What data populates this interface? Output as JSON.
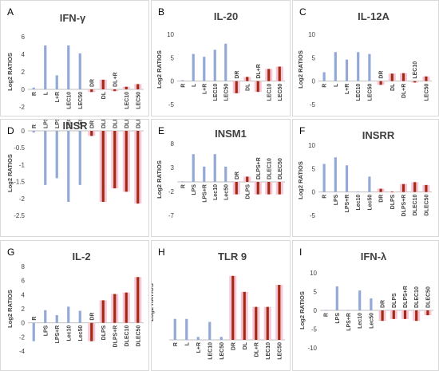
{
  "y_axis_label": "Log2 RATIOS",
  "colors": {
    "blue": "#92a9d8",
    "red": "#a52a14",
    "pink": "#f5c6d6",
    "axis": "#bfbfbf"
  },
  "chart_data": [
    {
      "type": "bar",
      "letter": "A",
      "title": "IFN-γ",
      "categories": [
        "R",
        "L",
        "L+R",
        "LEC10",
        "LEC50",
        "DR",
        "DL",
        "DL+R",
        "LEC10",
        "LEC50"
      ],
      "values": [
        0.2,
        5.0,
        1.6,
        5.0,
        4.1,
        -0.3,
        1.1,
        -0.2,
        0.3,
        0.6
      ],
      "colors": [
        "blue",
        "blue",
        "blue",
        "blue",
        "blue",
        "red",
        "red",
        "red",
        "red",
        "red"
      ],
      "yticks": [
        6,
        4,
        2,
        0,
        -2
      ],
      "ylim": [
        -2,
        6
      ]
    },
    {
      "type": "bar",
      "letter": "B",
      "title": "IL-20",
      "categories": [
        "R",
        "L",
        "L+R",
        "LEC10",
        "LEC50",
        "DR",
        "DL",
        "DL+R",
        "LEC10",
        "LEC50"
      ],
      "values": [
        0.2,
        5.8,
        5.2,
        6.7,
        8.0,
        -2.6,
        0.9,
        -2.3,
        2.6,
        3.1
      ],
      "colors": [
        "blue",
        "blue",
        "blue",
        "blue",
        "blue",
        "red",
        "red",
        "red",
        "red",
        "red"
      ],
      "yticks": [
        10,
        5,
        0,
        -5
      ],
      "ylim": [
        -5,
        10
      ]
    },
    {
      "type": "bar",
      "letter": "C",
      "title": "IL-12A",
      "categories": [
        "R",
        "L",
        "L+R",
        "LEC10",
        "LEC50",
        "DR",
        "DL",
        "DL+R",
        "LEC10",
        "LEC50"
      ],
      "values": [
        1.9,
        6.2,
        4.6,
        6.2,
        5.8,
        -0.8,
        1.6,
        1.7,
        -0.3,
        1.0
      ],
      "colors": [
        "blue",
        "blue",
        "blue",
        "blue",
        "blue",
        "red",
        "red",
        "red",
        "red",
        "red"
      ],
      "yticks": [
        10,
        5,
        0,
        -5
      ],
      "ylim": [
        -5,
        10
      ]
    },
    {
      "type": "bar",
      "letter": "D",
      "title": "INSR",
      "categories": [
        "R",
        "LPS",
        "LPS+R",
        "LEC10",
        "LEC50",
        "DR",
        "DLPS",
        "DLPS+R",
        "DLEC10",
        "DLEC50"
      ],
      "values": [
        -0.05,
        -1.6,
        -1.4,
        -2.1,
        -1.6,
        -0.15,
        -2.1,
        -1.7,
        -1.8,
        -2.15
      ],
      "colors": [
        "blue",
        "blue",
        "blue",
        "blue",
        "blue",
        "red",
        "red",
        "red",
        "red",
        "red"
      ],
      "yticks": [
        0,
        -0.5,
        -1,
        -1.5,
        -2,
        -2.5
      ],
      "ylim": [
        -2.5,
        0
      ]
    },
    {
      "type": "bar",
      "letter": "E",
      "title": "INSM1",
      "categories": [
        "R",
        "LPS",
        "LPS+R",
        "Lec10",
        "Lec50",
        "DR",
        "DLPS",
        "DLPS+R",
        "DLEC10",
        "DLEC50"
      ],
      "values": [
        0.1,
        5.8,
        3.2,
        5.8,
        3.2,
        -2.6,
        1.1,
        -2.6,
        -2.6,
        -2.6
      ],
      "colors": [
        "blue",
        "blue",
        "blue",
        "blue",
        "blue",
        "red",
        "red",
        "red",
        "red",
        "red"
      ],
      "yticks": [
        8,
        3,
        -2,
        -7
      ],
      "ylim": [
        -7,
        8
      ]
    },
    {
      "type": "bar",
      "letter": "F",
      "title": "INSRR",
      "categories": [
        "R",
        "LPS",
        "LPS+R",
        "Lec10",
        "Lec50",
        "DR",
        "DLPS",
        "DLPS+R",
        "DLEC10",
        "DLEC50"
      ],
      "values": [
        6.0,
        7.4,
        5.7,
        0.1,
        3.3,
        0.7,
        0.1,
        1.7,
        2.1,
        1.5
      ],
      "colors": [
        "blue",
        "blue",
        "blue",
        "blue",
        "blue",
        "red",
        "red",
        "red",
        "red",
        "red"
      ],
      "yticks": [
        10,
        5,
        0,
        -5
      ],
      "ylim": [
        -5,
        10
      ]
    },
    {
      "type": "bar",
      "letter": "G",
      "title": "IL-2",
      "categories": [
        "R",
        "LPS",
        "LPS+R",
        "Lec10",
        "Lec50",
        "DR",
        "DLPS",
        "DLPS+R",
        "DLEC10",
        "DLEC50"
      ],
      "values": [
        -2.6,
        1.8,
        1.1,
        2.3,
        1.7,
        -2.6,
        3.2,
        4.1,
        4.3,
        6.5
      ],
      "colors": [
        "blue",
        "blue",
        "blue",
        "blue",
        "blue",
        "red",
        "red",
        "red",
        "red",
        "red"
      ],
      "yticks": [
        8,
        6,
        4,
        2,
        0,
        -2,
        -4
      ],
      "ylim": [
        -4,
        8
      ]
    },
    {
      "type": "bar",
      "letter": "H",
      "title": "TLR 9",
      "categories": [
        "R",
        "L",
        "L+R",
        "LEC10",
        "LEC50",
        "DR",
        "DL",
        "DL+R",
        "LEC10",
        "LEC50"
      ],
      "values": [
        2.1,
        2.1,
        0.3,
        1.8,
        0.3,
        6.4,
        4.8,
        3.3,
        3.3,
        5.5
      ],
      "colors": [
        "blue",
        "blue",
        "blue",
        "blue",
        "blue",
        "red",
        "red",
        "red",
        "red",
        "red"
      ],
      "yticks": [],
      "ylim": [
        0,
        7.5
      ]
    },
    {
      "type": "bar",
      "letter": "I",
      "title": "IFN-λ",
      "categories": [
        "R",
        "LPS",
        "LPS+R",
        "Lec10",
        "Lec50",
        "DR",
        "DLPS",
        "DLPS+R",
        "DLEC10",
        "DLEC50"
      ],
      "values": [
        0.1,
        6.4,
        0.1,
        5.3,
        3.2,
        -2.8,
        -2.3,
        -2.3,
        -2.8,
        -1.3
      ],
      "colors": [
        "blue",
        "blue",
        "blue",
        "blue",
        "blue",
        "red",
        "red",
        "red",
        "red",
        "red"
      ],
      "yticks": [
        10,
        5,
        0,
        -5,
        -10
      ],
      "ylim": [
        -10,
        10
      ]
    }
  ]
}
